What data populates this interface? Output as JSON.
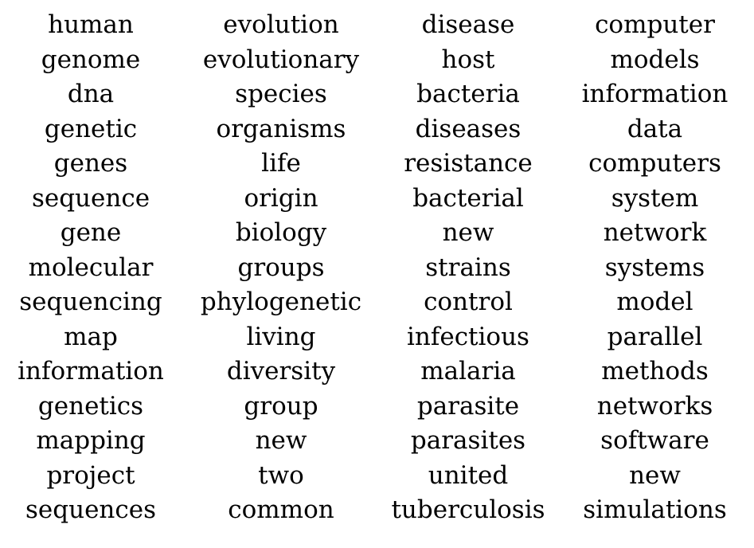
{
  "columns": [
    [
      "human",
      "genome",
      "dna",
      "genetic",
      "genes",
      "sequence",
      "gene",
      "molecular",
      "sequencing",
      "map",
      "information",
      "genetics",
      "mapping",
      "project",
      "sequences"
    ],
    [
      "evolution",
      "evolutionary",
      "species",
      "organisms",
      "life",
      "origin",
      "biology",
      "groups",
      "phylogenetic",
      "living",
      "diversity",
      "group",
      "new",
      "two",
      "common"
    ],
    [
      "disease",
      "host",
      "bacteria",
      "diseases",
      "resistance",
      "bacterial",
      "new",
      "strains",
      "control",
      "infectious",
      "malaria",
      "parasite",
      "parasites",
      "united",
      "tuberculosis"
    ],
    [
      "computer",
      "models",
      "information",
      "data",
      "computers",
      "system",
      "network",
      "systems",
      "model",
      "parallel",
      "methods",
      "networks",
      "software",
      "new",
      "simulations"
    ]
  ]
}
